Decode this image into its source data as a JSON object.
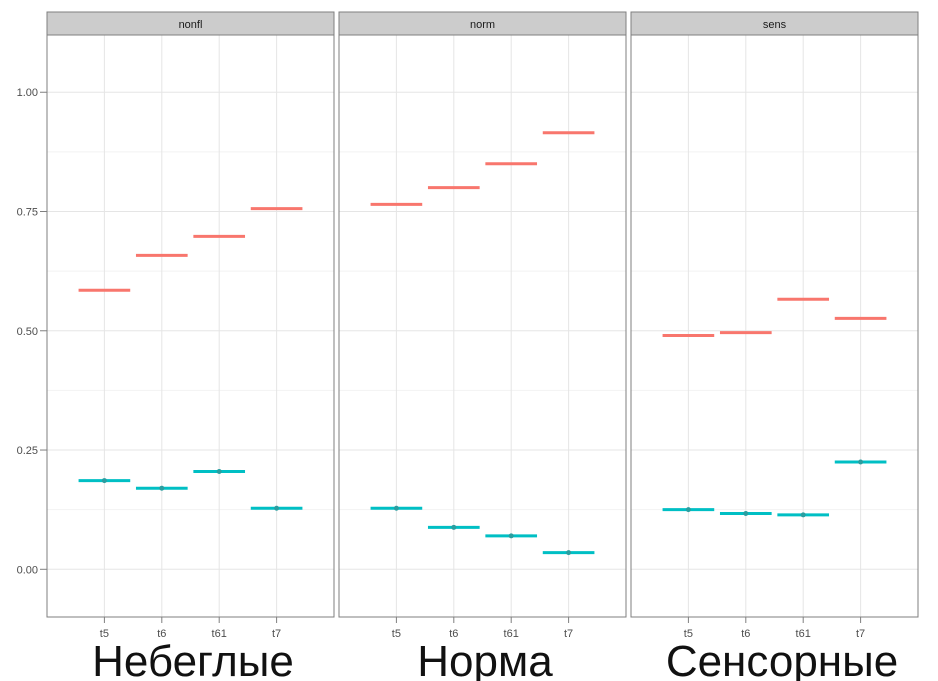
{
  "chart_data": {
    "type": "crossbar",
    "y_ticks": [
      "0.00",
      "0.25",
      "0.50",
      "0.75",
      "1.00"
    ],
    "y_tick_values": [
      0,
      0.25,
      0.5,
      0.75,
      1.0
    ],
    "ylim": [
      -0.1,
      1.12
    ],
    "grid": true,
    "categories": [
      "t5",
      "t6",
      "t61",
      "t7"
    ],
    "colors": {
      "series_1": "#F8766D",
      "series_2": "#00BFC4"
    },
    "facets": [
      {
        "strip": "nonfl",
        "caption": "Небеглые",
        "series": [
          {
            "values": [
              0.585,
              0.658,
              0.698,
              0.756
            ]
          },
          {
            "values": [
              0.186,
              0.17,
              0.205,
              0.128
            ]
          }
        ]
      },
      {
        "strip": "norm",
        "caption": "Норма",
        "series": [
          {
            "values": [
              0.765,
              0.8,
              0.85,
              0.915
            ]
          },
          {
            "values": [
              0.128,
              0.088,
              0.07,
              0.035
            ]
          }
        ]
      },
      {
        "strip": "sens",
        "caption": "Сенсорные",
        "series": [
          {
            "values": [
              0.49,
              0.496,
              0.566,
              0.526
            ]
          },
          {
            "values": [
              0.125,
              0.117,
              0.114,
              0.225
            ]
          }
        ]
      }
    ]
  }
}
